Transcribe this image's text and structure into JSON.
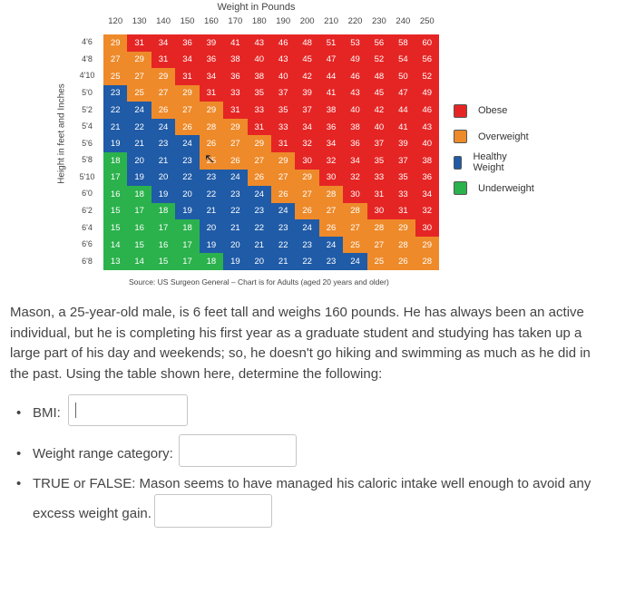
{
  "chart": {
    "title": "Weight in Pounds",
    "y_label": "Height in feet and Inches",
    "source": "Source: US Surgeon General – Chart is for Adults (aged 20 years and older)",
    "weights": [
      "120",
      "130",
      "140",
      "150",
      "160",
      "170",
      "180",
      "190",
      "200",
      "210",
      "220",
      "230",
      "240",
      "250"
    ],
    "heights": [
      "4'6",
      "4'8",
      "4'10",
      "5'0",
      "5'2",
      "5'4",
      "5'6",
      "5'8",
      "5'10",
      "6'0",
      "6'2",
      "6'4",
      "6'6",
      "6'8"
    ],
    "cursor_icon": "arrow-cursor-icon",
    "legend": [
      {
        "label": "Obese",
        "color": "#e52524"
      },
      {
        "label": "Overweight",
        "color": "#ee8a2a"
      },
      {
        "label": "Healthy Weight",
        "color": "#1f5ba7"
      },
      {
        "label": "Underweight",
        "color": "#2bb24c"
      }
    ]
  },
  "chart_data": {
    "type": "table",
    "title": "Weight in Pounds",
    "xlabel": "Weight in Pounds",
    "ylabel": "Height in feet and Inches",
    "columns": [
      "120",
      "130",
      "140",
      "150",
      "160",
      "170",
      "180",
      "190",
      "200",
      "210",
      "220",
      "230",
      "240",
      "250"
    ],
    "rows": [
      "4'6",
      "4'8",
      "4'10",
      "5'0",
      "5'2",
      "5'4",
      "5'6",
      "5'8",
      "5'10",
      "6'0",
      "6'2",
      "6'4",
      "6'6",
      "6'8"
    ],
    "values": [
      [
        29,
        31,
        34,
        36,
        39,
        41,
        43,
        46,
        48,
        51,
        53,
        56,
        58,
        60
      ],
      [
        27,
        29,
        31,
        34,
        36,
        38,
        40,
        43,
        45,
        47,
        49,
        52,
        54,
        56
      ],
      [
        25,
        27,
        29,
        31,
        34,
        36,
        38,
        40,
        42,
        44,
        46,
        48,
        50,
        52
      ],
      [
        23,
        25,
        27,
        29,
        31,
        33,
        35,
        37,
        39,
        41,
        43,
        45,
        47,
        49
      ],
      [
        22,
        24,
        26,
        27,
        29,
        31,
        33,
        35,
        37,
        38,
        40,
        42,
        44,
        46
      ],
      [
        21,
        22,
        24,
        26,
        28,
        29,
        31,
        33,
        34,
        36,
        38,
        40,
        41,
        43
      ],
      [
        19,
        21,
        23,
        24,
        26,
        27,
        29,
        31,
        32,
        34,
        36,
        37,
        39,
        40
      ],
      [
        18,
        20,
        21,
        23,
        25,
        26,
        27,
        29,
        30,
        32,
        34,
        35,
        37,
        38
      ],
      [
        17,
        19,
        20,
        22,
        23,
        24,
        26,
        27,
        29,
        30,
        32,
        33,
        35,
        36
      ],
      [
        16,
        18,
        19,
        20,
        22,
        23,
        24,
        26,
        27,
        28,
        30,
        31,
        33,
        34
      ],
      [
        15,
        17,
        18,
        19,
        21,
        22,
        23,
        24,
        26,
        27,
        28,
        30,
        31,
        32
      ],
      [
        15,
        16,
        17,
        18,
        20,
        21,
        22,
        23,
        24,
        26,
        27,
        28,
        29,
        30
      ],
      [
        14,
        15,
        16,
        17,
        19,
        20,
        21,
        22,
        23,
        24,
        25,
        27,
        28,
        29
      ],
      [
        13,
        14,
        15,
        17,
        18,
        19,
        20,
        21,
        22,
        23,
        24,
        25,
        26,
        28
      ]
    ],
    "categories": [
      {
        "label": "Obese",
        "color": "#e52524",
        "min": 30
      },
      {
        "label": "Overweight",
        "color": "#ee8a2a",
        "min": 25,
        "max": 29
      },
      {
        "label": "Healthy Weight",
        "color": "#1f5ba7",
        "min": 19,
        "max": 24
      },
      {
        "label": "Underweight",
        "color": "#2bb24c",
        "max": 18
      }
    ]
  },
  "question": {
    "text": "Mason, a 25-year-old male, is 6 feet tall and weighs 160 pounds. He has always been an active individual, but he is completing his first year as a graduate student and studying has taken up a large part of his day and weekends; so, he doesn't go hiking and swimming as much as he did in the past. Using the table shown here, determine the following:"
  },
  "bullets": [
    {
      "label": "BMI:",
      "value": ""
    },
    {
      "label": "Weight range category:",
      "value": ""
    },
    {
      "line1": "TRUE or FALSE: Mason seems to have managed his caloric intake well enough to avoid any",
      "line2": "excess weight gain.",
      "value": ""
    }
  ]
}
